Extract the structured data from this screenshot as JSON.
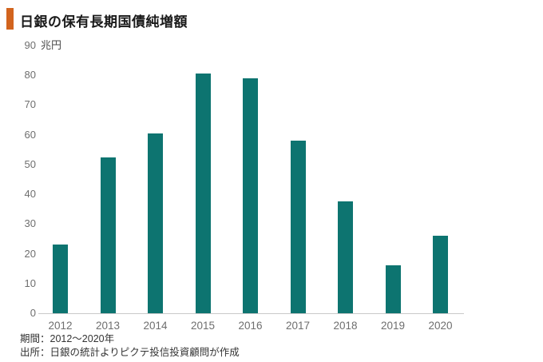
{
  "header": {
    "title": "日銀の保有長期国債純増額",
    "accent_color": "#D2641E"
  },
  "chart_data": {
    "type": "bar",
    "title": "日銀の保有長期国債純増額",
    "unit_label": "兆円",
    "categories": [
      "2012",
      "2013",
      "2014",
      "2015",
      "2016",
      "2017",
      "2018",
      "2019",
      "2020"
    ],
    "values": [
      23,
      52.5,
      60.5,
      80.5,
      79,
      58,
      37.5,
      16,
      26
    ],
    "xlabel": "",
    "ylabel": "兆円",
    "ylim": [
      0,
      90
    ],
    "yticks": [
      0,
      10,
      20,
      30,
      40,
      50,
      60,
      70,
      80,
      90
    ],
    "grid": false,
    "legend": false,
    "bar_color": "#0D7470",
    "axis_line_color": "#C9C9C9",
    "tick_label_color": "#6E6E6E"
  },
  "footer": {
    "period": "期間：2012～2020年",
    "source": "出所：日銀の統計よりピクテ投信投資顧問が作成"
  }
}
